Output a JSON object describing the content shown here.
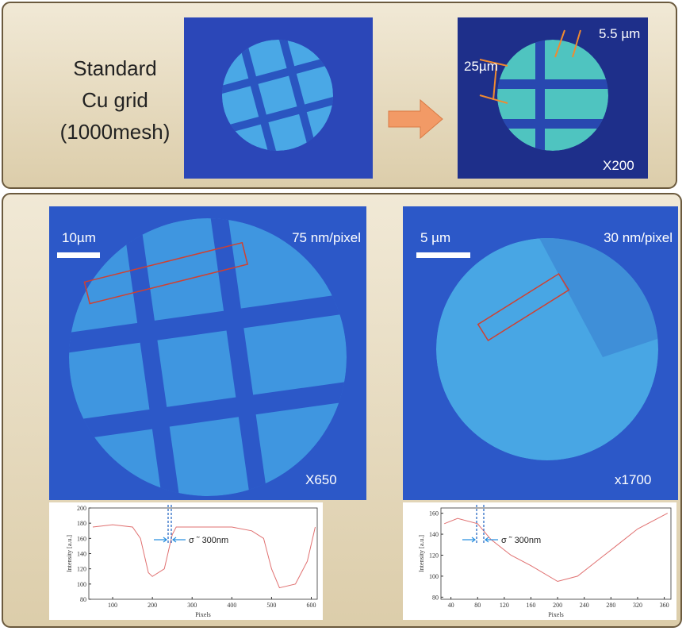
{
  "top_panel": {
    "label_lines": [
      "Standard",
      "Cu grid",
      "(1000mesh)"
    ],
    "right_image": {
      "bar_width": "5.5 µm",
      "pitch": "25µm",
      "magnification": "X200"
    }
  },
  "bottom_panel": {
    "left_image": {
      "scale_bar": "10µm",
      "resolution": "75 nm/pixel",
      "magnification": "X650"
    },
    "right_image": {
      "scale_bar": "5 µm",
      "resolution": "30 nm/pixel",
      "magnification": "x1700"
    }
  },
  "chart_data": [
    {
      "type": "line",
      "xlabel": "Pixels",
      "ylabel": "Intensity [a.u.]",
      "annotation": "σ ˜ 300nm",
      "color": "#e07070",
      "x": [
        50,
        100,
        150,
        170,
        190,
        200,
        230,
        250,
        260,
        300,
        400,
        450,
        480,
        500,
        520,
        560,
        590,
        610
      ],
      "values": [
        175,
        178,
        175,
        160,
        115,
        110,
        120,
        165,
        175,
        175,
        175,
        170,
        160,
        120,
        95,
        100,
        130,
        175
      ],
      "xlim": [
        40,
        615
      ],
      "ylim": [
        80,
        200
      ],
      "xticks": [
        100,
        200,
        300,
        400,
        500,
        600
      ],
      "yticks": [
        80,
        100,
        120,
        140,
        160,
        180,
        200
      ]
    },
    {
      "type": "line",
      "xlabel": "Pixels",
      "ylabel": "Intensity [a.u.]",
      "annotation": "σ ˜ 300nm",
      "color": "#e07070",
      "x": [
        30,
        50,
        80,
        100,
        130,
        160,
        200,
        230,
        260,
        290,
        320,
        350,
        365
      ],
      "values": [
        150,
        155,
        150,
        135,
        120,
        110,
        95,
        100,
        115,
        130,
        145,
        155,
        160
      ],
      "xlim": [
        25,
        370
      ],
      "ylim": [
        78,
        165
      ],
      "xticks": [
        40,
        80,
        120,
        160,
        200,
        240,
        280,
        320,
        360
      ],
      "yticks": [
        80,
        100,
        120,
        140,
        160
      ]
    }
  ]
}
